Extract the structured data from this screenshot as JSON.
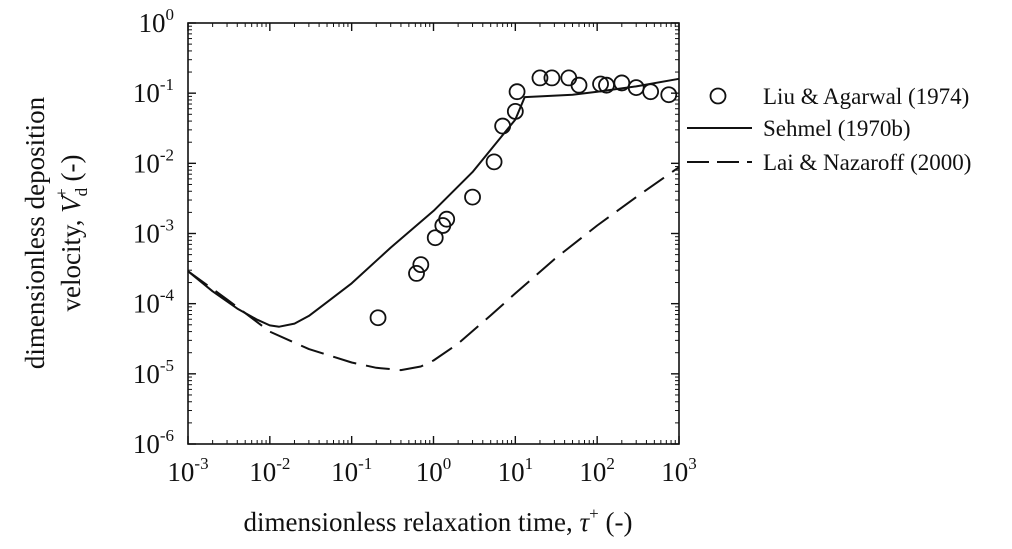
{
  "chart_data": {
    "type": "scatter",
    "xlabel": "dimensionless relaxation time, τ⁺ (-)",
    "xlabel_main": "dimensionless relaxation time, ",
    "xlabel_symbol": "τ",
    "xlabel_sup": "+",
    "xlabel_unit": " (-)",
    "ylabel": "dimensionless deposition velocity, V_d⁺ (-)",
    "ylabel_line1": "dimensionless deposition",
    "ylabel_line2_main": "velocity, ",
    "ylabel_symbol": "V",
    "ylabel_sub": "d",
    "ylabel_sup": "+",
    "ylabel_unit": " (-)",
    "xscale": "log",
    "yscale": "log",
    "xlim": [
      0.001,
      1000
    ],
    "ylim": [
      1e-06,
      1
    ],
    "xticks": [
      {
        "base": "10",
        "exp": "-3",
        "value": 0.001
      },
      {
        "base": "10",
        "exp": "-2",
        "value": 0.01
      },
      {
        "base": "10",
        "exp": "-1",
        "value": 0.1
      },
      {
        "base": "10",
        "exp": "0",
        "value": 1
      },
      {
        "base": "10",
        "exp": "1",
        "value": 10
      },
      {
        "base": "10",
        "exp": "2",
        "value": 100
      },
      {
        "base": "10",
        "exp": "3",
        "value": 1000
      }
    ],
    "yticks": [
      {
        "base": "10",
        "exp": "-6",
        "value": 1e-06
      },
      {
        "base": "10",
        "exp": "-5",
        "value": 1e-05
      },
      {
        "base": "10",
        "exp": "-4",
        "value": 0.0001
      },
      {
        "base": "10",
        "exp": "-3",
        "value": 0.001
      },
      {
        "base": "10",
        "exp": "-2",
        "value": 0.01
      },
      {
        "base": "10",
        "exp": "-1",
        "value": 0.1
      },
      {
        "base": "10",
        "exp": "0",
        "value": 1
      }
    ],
    "grid": false,
    "legend_position": "right",
    "series": [
      {
        "name": "Liu & Agarwal (1974)",
        "style": "open-circle",
        "points": [
          [
            0.21,
            6.3e-05
          ],
          [
            0.62,
            0.00027
          ],
          [
            0.7,
            0.00036
          ],
          [
            1.05,
            0.00087
          ],
          [
            1.3,
            0.0013
          ],
          [
            1.45,
            0.0016
          ],
          [
            3.0,
            0.0033
          ],
          [
            5.5,
            0.0105
          ],
          [
            7.0,
            0.034
          ],
          [
            10.0,
            0.055
          ],
          [
            10.5,
            0.105
          ],
          [
            20.0,
            0.165
          ],
          [
            28.0,
            0.165
          ],
          [
            45.0,
            0.165
          ],
          [
            60.0,
            0.13
          ],
          [
            110.0,
            0.135
          ],
          [
            130.0,
            0.13
          ],
          [
            200.0,
            0.14
          ],
          [
            300.0,
            0.12
          ],
          [
            450.0,
            0.105
          ],
          [
            750.0,
            0.095
          ]
        ]
      },
      {
        "name": "Sehmel (1970b)",
        "style": "solid",
        "points": [
          [
            0.001,
            0.00029
          ],
          [
            0.002,
            0.00015
          ],
          [
            0.004,
            8.5e-05
          ],
          [
            0.007,
            5.9e-05
          ],
          [
            0.01,
            4.9e-05
          ],
          [
            0.013,
            4.7e-05
          ],
          [
            0.02,
            5.2e-05
          ],
          [
            0.03,
            6.7e-05
          ],
          [
            0.05,
            0.000105
          ],
          [
            0.1,
            0.000195
          ],
          [
            0.3,
            0.00063
          ],
          [
            1.0,
            0.0021
          ],
          [
            3.0,
            0.0075
          ],
          [
            10.0,
            0.042
          ],
          [
            13.0,
            0.088
          ],
          [
            20.0,
            0.09
          ],
          [
            50.0,
            0.095
          ],
          [
            100.0,
            0.105
          ],
          [
            300.0,
            0.125
          ],
          [
            1000.0,
            0.16
          ]
        ]
      },
      {
        "name": "Lai & Nazaroff (2000)",
        "style": "dashed",
        "points": [
          [
            0.001,
            0.00029
          ],
          [
            0.003,
            0.000115
          ],
          [
            0.01,
            4e-05
          ],
          [
            0.03,
            2.25e-05
          ],
          [
            0.1,
            1.45e-05
          ],
          [
            0.2,
            1.22e-05
          ],
          [
            0.4,
            1.13e-05
          ],
          [
            0.7,
            1.27e-05
          ],
          [
            1.0,
            1.55e-05
          ],
          [
            2.0,
            2.7e-05
          ],
          [
            5.0,
            6.8e-05
          ],
          [
            10.0,
            0.00014
          ],
          [
            30.0,
            0.00043
          ],
          [
            100.0,
            0.0013
          ],
          [
            300.0,
            0.0033
          ],
          [
            1000.0,
            0.0088
          ]
        ]
      }
    ]
  }
}
